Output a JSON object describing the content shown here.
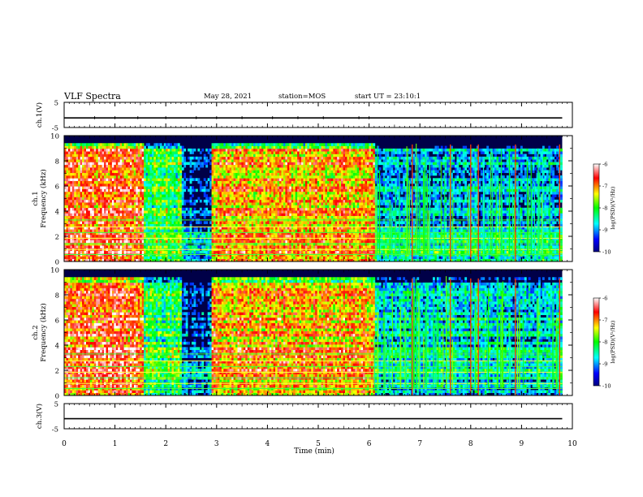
{
  "header": {
    "title": "VLF Spectra",
    "date": "May 28, 2021",
    "station": "station=MOS",
    "start_ut": "start UT = 23:10:1"
  },
  "chart_data": [
    {
      "type": "line",
      "ylabel": "ch.1(V)",
      "ylim": [
        -5,
        5
      ],
      "yticks": [
        "5",
        "-5"
      ],
      "xlim": [
        0,
        10
      ],
      "series": [
        {
          "x": [
            0,
            9.8
          ],
          "values": [
            -1.2,
            -1.2
          ]
        }
      ]
    },
    {
      "type": "heatmap",
      "ylabel": "ch.1",
      "ylabel2": "Frequency (kHz)",
      "ylim": [
        0,
        10
      ],
      "yticks": [
        "0",
        "2",
        "4",
        "6",
        "8",
        "10"
      ],
      "xlim": [
        0,
        10
      ],
      "data_end_min": 9.8,
      "colorbar": {
        "label": "log(PSD)(V²/Hz)",
        "range": [
          -10,
          -6
        ],
        "ticks": [
          "-6",
          "-7",
          "-8",
          "-9",
          "-10"
        ]
      },
      "activity_by_segment": [
        {
          "x0": 0,
          "x1": 1.55,
          "level": 0.78
        },
        {
          "x0": 1.55,
          "x1": 2.3,
          "level": 0.45
        },
        {
          "x0": 2.3,
          "x1": 2.9,
          "level": 0.12
        },
        {
          "x0": 2.9,
          "x1": 6.1,
          "level": 0.68
        },
        {
          "x0": 6.1,
          "x1": 9.8,
          "level": 0.22
        }
      ],
      "vertical_bursts_min": [
        6.85,
        7.6,
        8.0,
        8.15,
        8.88,
        9.75
      ]
    },
    {
      "type": "heatmap",
      "ylabel": "ch.2",
      "ylabel2": "Frequency (kHz)",
      "ylim": [
        0,
        10
      ],
      "yticks": [
        "0",
        "2",
        "4",
        "6",
        "8",
        "10"
      ],
      "xlim": [
        0,
        10
      ],
      "data_end_min": 9.8,
      "colorbar": {
        "label": "log(PSD)(V²/Hz)",
        "range": [
          -10,
          -6
        ],
        "ticks": [
          "-6",
          "-7",
          "-8",
          "-9",
          "-10"
        ]
      },
      "activity_by_segment": [
        {
          "x0": 0,
          "x1": 1.55,
          "level": 0.8
        },
        {
          "x0": 1.55,
          "x1": 2.3,
          "level": 0.45
        },
        {
          "x0": 2.3,
          "x1": 2.9,
          "level": 0.12
        },
        {
          "x0": 2.9,
          "x1": 6.1,
          "level": 0.7
        },
        {
          "x0": 6.1,
          "x1": 9.8,
          "level": 0.3
        }
      ],
      "vertical_bursts_min": [
        6.85,
        7.6,
        8.0,
        8.15,
        8.88,
        9.75
      ]
    },
    {
      "type": "line",
      "ylabel": "ch.3(V)",
      "ylim": [
        -5,
        5
      ],
      "yticks": [
        "5",
        "-5"
      ],
      "xlim": [
        0,
        10
      ],
      "xlabel": "Time (min)",
      "xticks": [
        "0",
        "1",
        "2",
        "3",
        "4",
        "5",
        "6",
        "7",
        "8",
        "9",
        "10"
      ],
      "series": [
        {
          "x": [
            0,
            9.8
          ],
          "values": [
            -1.0,
            -1.0
          ]
        }
      ]
    }
  ]
}
